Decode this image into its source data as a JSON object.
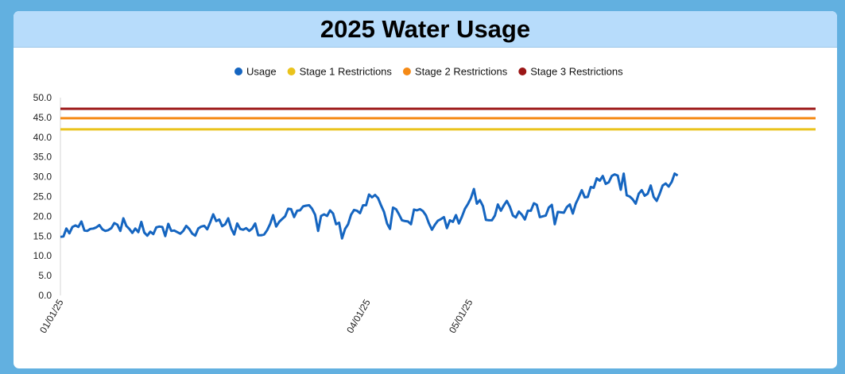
{
  "chart_data": {
    "type": "line",
    "title": "2025 Water Usage",
    "xlabel": "",
    "ylabel": "",
    "ylim": [
      0,
      50
    ],
    "y_ticks": [
      "0.0",
      "5.0",
      "10.0",
      "15.0",
      "20.0",
      "25.0",
      "30.0",
      "35.0",
      "40.0",
      "45.0",
      "50.0"
    ],
    "x_tick_labels": [
      {
        "label": "01/01/25",
        "date": "2025-01-01"
      },
      {
        "label": "04/01/25",
        "date": "2025-04-01"
      },
      {
        "label": "05/01/25",
        "date": "2025-05-01"
      }
    ],
    "x_range": [
      "2025-01-01",
      "2025-07-01"
    ],
    "legend_position": "top",
    "grid": false,
    "series": [
      {
        "name": "Usage",
        "color": "#1565c0",
        "start_date": "2025-01-01",
        "end_date": "2025-07-01",
        "values": [
          14.8,
          14.9,
          16.9,
          15.7,
          17.3,
          17.7,
          17.3,
          18.7,
          16.4,
          16.3,
          16.8,
          16.9,
          17.2,
          17.8,
          16.7,
          16.3,
          16.5,
          17.0,
          18.3,
          17.9,
          16.3,
          19.5,
          17.6,
          16.8,
          15.8,
          16.9,
          16.0,
          18.6,
          15.9,
          15.1,
          16.1,
          15.5,
          17.2,
          17.4,
          17.3,
          15.0,
          18.1,
          16.3,
          16.4,
          16.0,
          15.6,
          16.3,
          17.6,
          16.8,
          15.6,
          15.1,
          16.9,
          17.4,
          17.6,
          16.7,
          18.5,
          20.5,
          18.8,
          19.2,
          17.5,
          18.0,
          19.5,
          16.9,
          15.4,
          18.2,
          16.8,
          16.6,
          17.0,
          16.3,
          16.9,
          18.2,
          15.2,
          15.2,
          15.4,
          16.5,
          18.1,
          20.3,
          17.4,
          18.6,
          19.3,
          20.0,
          21.9,
          21.8,
          19.8,
          21.4,
          21.5,
          22.5,
          22.7,
          22.8,
          21.9,
          20.4,
          16.3,
          20.1,
          20.5,
          20.1,
          21.5,
          20.7,
          18.0,
          18.4,
          14.4,
          16.8,
          18.0,
          20.4,
          21.6,
          21.4,
          20.8,
          22.8,
          22.8,
          25.5,
          24.8,
          25.4,
          24.6,
          22.8,
          21.1,
          18.2,
          16.8,
          22.2,
          21.8,
          20.5,
          19.0,
          18.8,
          18.7,
          18.0,
          21.7,
          21.5,
          21.8,
          21.3,
          20.2,
          18.2,
          16.6,
          17.9,
          18.9,
          19.3,
          19.8,
          17.0,
          19.0,
          18.6,
          20.3,
          18.2,
          19.9,
          21.9,
          23.1,
          24.6,
          26.9,
          23.2,
          24.1,
          22.6,
          19.1,
          19.0,
          19.0,
          20.2,
          23.0,
          21.4,
          22.8,
          23.9,
          22.4,
          20.2,
          19.7,
          21.2,
          20.4,
          19.2,
          21.4,
          21.4,
          23.3,
          22.9,
          19.8,
          20.0,
          20.2,
          22.2,
          22.9,
          18.0,
          21.1,
          21.0,
          20.9,
          22.3,
          23.0,
          20.7,
          23.2,
          24.8,
          26.6,
          24.8,
          24.9,
          27.4,
          27.2,
          29.6,
          29.0,
          30.2,
          28.2,
          28.6,
          30.2,
          30.6,
          30.3,
          26.7,
          30.8,
          25.3,
          25.0,
          24.3,
          23.2,
          25.7,
          26.6,
          25.2,
          25.7,
          27.8,
          24.9,
          23.9,
          25.7,
          27.8,
          28.3,
          27.5,
          28.7,
          30.8,
          30.3
        ]
      },
      {
        "name": "Stage 1 Restrictions",
        "color": "#eac31c",
        "values": [
          42,
          42
        ]
      },
      {
        "name": "Stage 2 Restrictions",
        "color": "#f58a16",
        "values": [
          44.8,
          44.8
        ]
      },
      {
        "name": "Stage 3 Restrictions",
        "color": "#9b1616",
        "values": [
          47.2,
          47.2
        ]
      }
    ]
  }
}
